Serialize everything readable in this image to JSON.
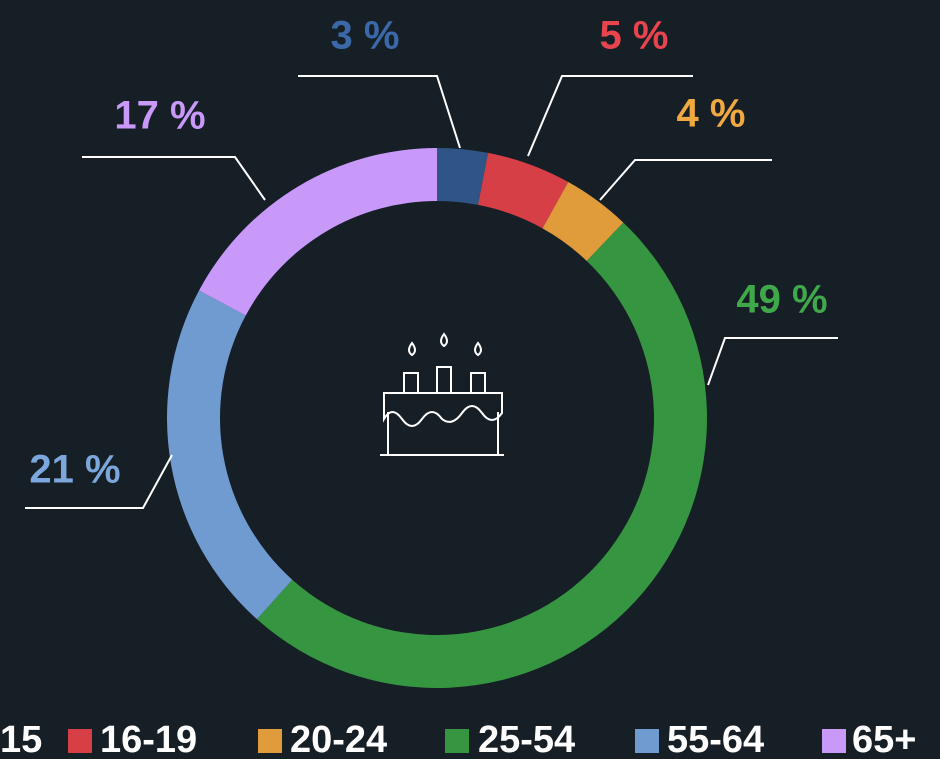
{
  "chart_data": {
    "type": "pie",
    "categories": [
      "15",
      "16-19",
      "20-24",
      "25-54",
      "55-64",
      "65+"
    ],
    "values": [
      3,
      5,
      4,
      49,
      21,
      17
    ],
    "value_labels": [
      "3 %",
      "5 %",
      "4 %",
      "49 %",
      "21 %",
      "17 %"
    ],
    "colors": [
      "#2f5587",
      "#d63f46",
      "#e09c3b",
      "#369540",
      "#6f9bd1",
      "#c999fa"
    ],
    "label_colors": [
      "#3b69a8",
      "#e8444d",
      "#f0a840",
      "#3fa84a",
      "#7ba7dc",
      "#c999fa"
    ],
    "donut": true,
    "legend": "bottom"
  }
}
